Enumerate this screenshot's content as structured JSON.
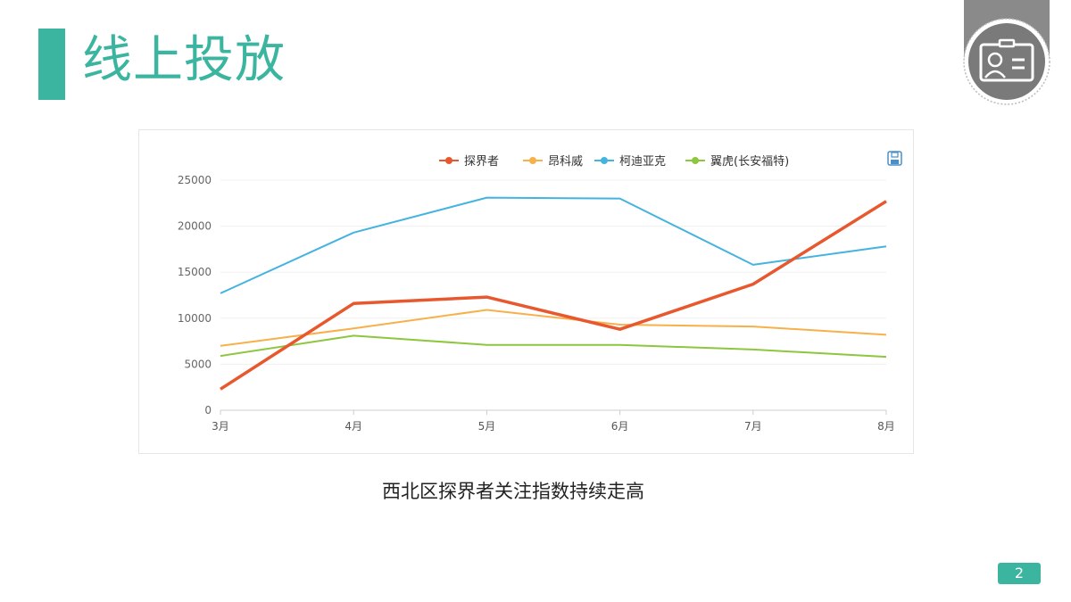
{
  "header": {
    "title": "线上投放"
  },
  "caption": "西北区探界者关注指数持续走高",
  "page_number": "2",
  "colors": {
    "accent": "#3cb5a0"
  },
  "icons": {
    "badge": "id-card-icon",
    "save": "save-image-icon"
  },
  "chart_data": {
    "type": "line",
    "title": "",
    "xlabel": "",
    "ylabel": "",
    "categories": [
      "3月",
      "4月",
      "5月",
      "6月",
      "7月",
      "8月"
    ],
    "ylim": [
      0,
      25000
    ],
    "yticks": [
      "0",
      "5000",
      "10000",
      "15000",
      "20000",
      "25000"
    ],
    "grid": true,
    "legend": "top-right",
    "series": [
      {
        "name": "探界者",
        "color": "#e8582f",
        "values": [
          2300,
          11600,
          12300,
          8800,
          13700,
          22700
        ]
      },
      {
        "name": "昂科威",
        "color": "#f7b04a",
        "values": [
          7000,
          8900,
          10900,
          9300,
          9100,
          8200
        ]
      },
      {
        "name": "柯迪亚克",
        "color": "#45b3e0",
        "values": [
          12700,
          19300,
          23100,
          23000,
          15800,
          17800
        ]
      },
      {
        "name": "翼虎(长安福特)",
        "color": "#8dc63f",
        "values": [
          5900,
          8100,
          7100,
          7100,
          6600,
          5800
        ]
      }
    ]
  }
}
